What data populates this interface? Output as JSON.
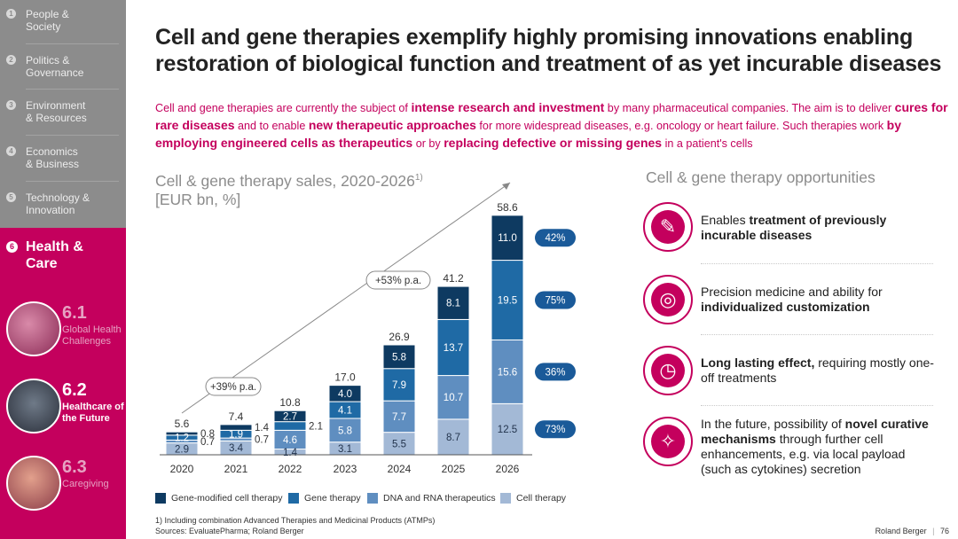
{
  "sidebar": {
    "items": [
      {
        "num": "1",
        "label": "People &\nSociety"
      },
      {
        "num": "2",
        "label": "Politics &\nGovernance"
      },
      {
        "num": "3",
        "label": "Environment\n& Resources"
      },
      {
        "num": "4",
        "label": "Economics\n& Business"
      },
      {
        "num": "5",
        "label": "Technology &\nInnovation"
      }
    ],
    "active": {
      "num": "6",
      "label": "Health &\nCare"
    },
    "subs": [
      {
        "num": "6.1",
        "label": "Global Health Challenges"
      },
      {
        "num": "6.2",
        "label": "Healthcare of the Future"
      },
      {
        "num": "6.3",
        "label": "Caregiving"
      }
    ]
  },
  "headline": "Cell and gene therapies exemplify highly promising innovations enabling restoration of biological function and treatment of as yet incurable diseases",
  "intro": {
    "p1": "Cell and gene therapies are currently the subject of ",
    "h1": "intense research and investment",
    "p2": " by many pharmaceutical companies. The aim is to deliver ",
    "h2": "cures for rare diseases",
    "p3": " and to enable ",
    "h3": "new therapeutic approaches",
    "p4": " for more widespread diseases, e.g. oncology or heart failure. Such therapies work ",
    "h4": "by employing engineered cells as therapeutics",
    "p5": " or by ",
    "h5": "replacing defective or missing genes",
    "p6": " in a patient's cells"
  },
  "chart_title": {
    "line1": "Cell & gene therapy sales, 2020-2026",
    "sup": "1)",
    "line2": "[EUR bn, %]"
  },
  "opportunities": {
    "title": "Cell & gene therapy opportunities",
    "items": [
      {
        "icon": "syringe-icon",
        "glyph": "✎",
        "pre": "Enables ",
        "bold": "treatment of previously incurable diseases",
        "post": ""
      },
      {
        "icon": "target-icon",
        "glyph": "◎",
        "pre": "Precision medicine and ability for ",
        "bold": "individualized customization",
        "post": ""
      },
      {
        "icon": "stopwatch-icon",
        "glyph": "◷",
        "pre": "",
        "bold": "Long lasting effect,",
        "post": " requiring mostly one-off treatments"
      },
      {
        "icon": "lightbulb-icon",
        "glyph": "✧",
        "pre": "In the future, possibility of ",
        "bold": "novel curative mechanisms",
        "post": " through further cell enhancements, e.g. via local payload (such as cytokines) secretion"
      }
    ]
  },
  "colors": {
    "gene_modified": "#0e3a61",
    "gene": "#1f6aa5",
    "dna_rna": "#5f8ec0",
    "cell": "#a3b9d6",
    "accent": "#c4005d",
    "growth_pill": "#1a5a99"
  },
  "chart_data": {
    "type": "bar",
    "stacked": true,
    "categories": [
      "2020",
      "2021",
      "2022",
      "2023",
      "2024",
      "2025",
      "2026"
    ],
    "series": [
      {
        "name": "Cell therapy",
        "key": "cell",
        "values": [
          2.9,
          3.4,
          1.4,
          3.1,
          5.5,
          8.7,
          12.5
        ],
        "labels": [
          "2.9",
          "3.4",
          "1.4",
          "3.1",
          "5.5",
          "8.7",
          "12.5"
        ]
      },
      {
        "name": "DNA and RNA therapeutics",
        "key": "dna_rna",
        "values": [
          0.7,
          0.7,
          4.6,
          5.8,
          7.7,
          10.7,
          15.6
        ],
        "labels": [
          "0.7",
          "0.7",
          "4.6",
          "5.8",
          "7.7",
          "10.7",
          "15.6"
        ]
      },
      {
        "name": "Gene therapy",
        "key": "gene",
        "values": [
          1.2,
          1.9,
          2.1,
          4.1,
          7.9,
          13.7,
          19.5
        ],
        "labels": [
          "1.2",
          "1.9",
          "2.1",
          "4.1",
          "7.9",
          "13.7",
          "19.5"
        ]
      },
      {
        "name": "Gene-modified cell therapy",
        "key": "gene_modified",
        "values": [
          0.8,
          1.4,
          2.7,
          4.0,
          5.8,
          8.1,
          11.0
        ],
        "labels": [
          "0.8",
          "1.4",
          "2.7",
          "4.0",
          "5.8",
          "8.1",
          "11.0"
        ]
      }
    ],
    "totals": [
      "5.6",
      "7.4",
      "10.8",
      "17.0",
      "26.9",
      "41.2",
      "58.6"
    ],
    "growth": [
      {
        "label": "+39% p.a."
      },
      {
        "label": "+53% p.a."
      }
    ],
    "cagr": {
      "labels": [
        "42%",
        "75%",
        "36%",
        "73%"
      ],
      "series_keys": [
        "gene_modified",
        "gene",
        "dna_rna",
        "cell"
      ]
    },
    "legend": [
      {
        "key": "gene_modified",
        "label": "Gene-modified cell therapy"
      },
      {
        "key": "gene",
        "label": "Gene therapy"
      },
      {
        "key": "dna_rna",
        "label": "DNA and RNA therapeutics"
      },
      {
        "key": "cell",
        "label": "Cell therapy"
      }
    ],
    "ylim": [
      0,
      60
    ]
  },
  "footnote": "1) Including combination Advanced Therapies and Medicinal Products (ATMPs)",
  "sources": "Sources: EvaluatePharma; Roland Berger",
  "brand": "Roland Berger",
  "page": "76"
}
